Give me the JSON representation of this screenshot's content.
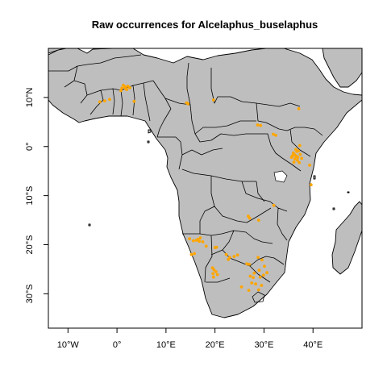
{
  "chart_data": {
    "type": "scatter",
    "title": "Raw occurrences for Alcelaphus_buselaphus",
    "xlabel": "",
    "ylabel": "",
    "xlim": [
      -14,
      50
    ],
    "ylim": [
      -37,
      20
    ],
    "x_ticks": [
      {
        "value": -10,
        "label": "10°W"
      },
      {
        "value": 0,
        "label": "0°"
      },
      {
        "value": 10,
        "label": "10°E"
      },
      {
        "value": 20,
        "label": "20°E"
      },
      {
        "value": 30,
        "label": "30°E"
      },
      {
        "value": 40,
        "label": "40°E"
      }
    ],
    "y_ticks": [
      {
        "value": 10,
        "label": "10°N"
      },
      {
        "value": 0,
        "label": "0°"
      },
      {
        "value": -10,
        "label": "10°S"
      },
      {
        "value": -20,
        "label": "20°S"
      },
      {
        "value": -30,
        "label": "30°S"
      }
    ],
    "grid": false,
    "legend": "none",
    "colors": {
      "land": "#bebebe",
      "ocean": "#ffffff",
      "border": "#000000",
      "points": "#ffa500"
    },
    "series": [
      {
        "values": [
          [
            1.0,
            11.9
          ],
          [
            1.6,
            12.2
          ],
          [
            2.0,
            11.6
          ],
          [
            2.6,
            12.0
          ],
          [
            1.3,
            12.5
          ],
          [
            2.2,
            12.3
          ],
          [
            0.8,
            11.4
          ],
          [
            1.8,
            11.8
          ],
          [
            -2.5,
            9.3
          ],
          [
            -3.5,
            9.1
          ],
          [
            -1.5,
            9.6
          ],
          [
            3.5,
            9.2
          ],
          [
            14.5,
            8.7
          ],
          [
            14.2,
            8.9
          ],
          [
            19.7,
            9.5
          ],
          [
            28.7,
            4.4
          ],
          [
            29.3,
            4.3
          ],
          [
            31.9,
            2.5
          ],
          [
            32.4,
            2.3
          ],
          [
            37.1,
            7.7
          ],
          [
            36.0,
            -1.3
          ],
          [
            36.3,
            -1.7
          ],
          [
            36.6,
            -2.0
          ],
          [
            36.9,
            -2.2
          ],
          [
            37.0,
            -0.9
          ],
          [
            37.3,
            0.2
          ],
          [
            36.7,
            -1.0
          ],
          [
            35.8,
            -1.9
          ],
          [
            36.3,
            -2.5
          ],
          [
            36.8,
            -2.8
          ],
          [
            37.2,
            -3.3
          ],
          [
            37.4,
            -1.6
          ],
          [
            36.1,
            -3.2
          ],
          [
            35.6,
            -2.2
          ],
          [
            37.7,
            -2.4
          ],
          [
            36.5,
            -0.6
          ],
          [
            39.3,
            -3.8
          ],
          [
            39.6,
            -7.8
          ],
          [
            32.0,
            -12.0
          ],
          [
            27.1,
            -14.6
          ],
          [
            26.8,
            -14.2
          ],
          [
            28.9,
            -15.0
          ],
          [
            15.6,
            -19.2
          ],
          [
            16.2,
            -19.1
          ],
          [
            16.8,
            -19.3
          ],
          [
            17.0,
            -18.6
          ],
          [
            14.8,
            -18.8
          ],
          [
            17.5,
            -19.4
          ],
          [
            16.5,
            -18.9
          ],
          [
            15.8,
            -21.8
          ],
          [
            15.2,
            -22.0
          ],
          [
            18.2,
            -20.3
          ],
          [
            20.0,
            -20.6
          ],
          [
            20.3,
            -20.5
          ],
          [
            22.3,
            -22.0
          ],
          [
            23.0,
            -22.6
          ],
          [
            23.9,
            -22.4
          ],
          [
            24.6,
            -22.1
          ],
          [
            22.7,
            -23.0
          ],
          [
            19.5,
            -24.7
          ],
          [
            19.8,
            -25.1
          ],
          [
            20.2,
            -25.5
          ],
          [
            19.6,
            -25.9
          ],
          [
            20.5,
            -26.1
          ],
          [
            19.7,
            -26.6
          ],
          [
            26.5,
            -23.9
          ],
          [
            27.0,
            -24.0
          ],
          [
            28.8,
            -22.6
          ],
          [
            29.6,
            -23.1
          ],
          [
            30.1,
            -24.4
          ],
          [
            29.0,
            -25.2
          ],
          [
            28.0,
            -25.8
          ],
          [
            27.8,
            -26.7
          ],
          [
            29.2,
            -26.6
          ],
          [
            29.9,
            -26.2
          ],
          [
            30.6,
            -25.7
          ],
          [
            27.5,
            -27.8
          ],
          [
            28.3,
            -28.0
          ],
          [
            27.2,
            -26.4
          ],
          [
            28.9,
            -29.2
          ],
          [
            26.9,
            -29.3
          ],
          [
            25.4,
            -28.6
          ],
          [
            29.5,
            -28.3
          ]
        ]
      }
    ]
  }
}
